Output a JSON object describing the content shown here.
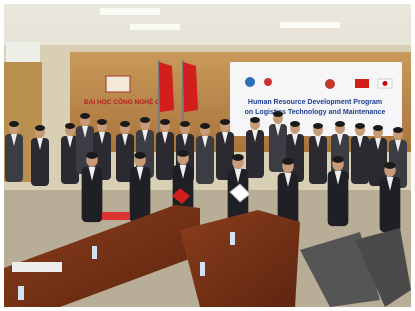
{
  "sign": {
    "text": "ĐẠI HỌC CÔNG NGHỆ GTVT"
  },
  "banner": {
    "lines": [
      "Human Resource Development Program",
      "on Logistics Technology and Maintenance"
    ]
  }
}
